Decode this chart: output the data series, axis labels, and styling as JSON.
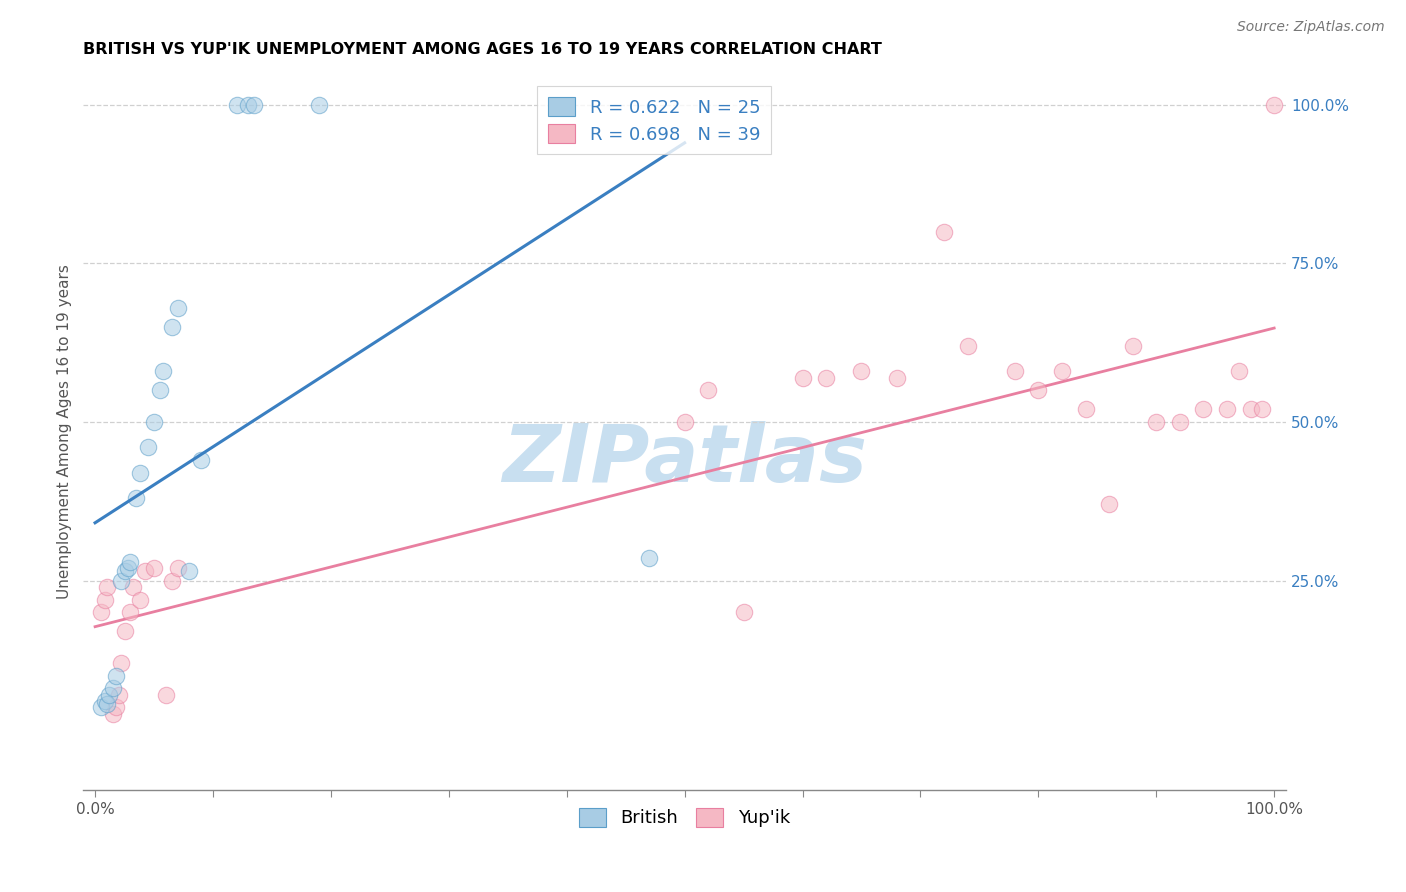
{
  "title": "BRITISH VS YUP'IK UNEMPLOYMENT AMONG AGES 16 TO 19 YEARS CORRELATION CHART",
  "source": "Source: ZipAtlas.com",
  "ylabel": "Unemployment Among Ages 16 to 19 years",
  "xlim": [
    -0.01,
    1.01
  ],
  "ylim": [
    -0.08,
    1.05
  ],
  "british_R": 0.622,
  "british_N": 25,
  "yupik_R": 0.698,
  "yupik_N": 39,
  "british_color": "#a8cce4",
  "british_edge_color": "#5b9ec9",
  "yupik_color": "#f5b8c4",
  "yupik_edge_color": "#e87fa0",
  "british_line_color": "#3a7fc1",
  "yupik_line_color": "#e87fa0",
  "legend_text_color": "#3a7fc1",
  "right_tick_color": "#3a7fc1",
  "watermark_color": "#c8dff0",
  "british_x": [
    0.005,
    0.008,
    0.01,
    0.012,
    0.015,
    0.018,
    0.022,
    0.025,
    0.028,
    0.03,
    0.035,
    0.038,
    0.045,
    0.05,
    0.055,
    0.058,
    0.065,
    0.07,
    0.08,
    0.09,
    0.12,
    0.13,
    0.135,
    0.19,
    0.47
  ],
  "british_y": [
    0.05,
    0.06,
    0.055,
    0.07,
    0.08,
    0.1,
    0.25,
    0.265,
    0.27,
    0.28,
    0.38,
    0.42,
    0.46,
    0.5,
    0.55,
    0.58,
    0.65,
    0.68,
    0.265,
    0.44,
    1.0,
    1.0,
    1.0,
    1.0,
    0.285
  ],
  "yupik_x": [
    0.005,
    0.008,
    0.01,
    0.015,
    0.018,
    0.02,
    0.022,
    0.025,
    0.03,
    0.032,
    0.038,
    0.042,
    0.05,
    0.06,
    0.065,
    0.07,
    0.5,
    0.52,
    0.55,
    0.6,
    0.62,
    0.65,
    0.68,
    0.72,
    0.74,
    0.78,
    0.8,
    0.82,
    0.84,
    0.86,
    0.88,
    0.9,
    0.92,
    0.94,
    0.96,
    0.97,
    0.98,
    0.99,
    1.0
  ],
  "yupik_y": [
    0.2,
    0.22,
    0.24,
    0.04,
    0.05,
    0.07,
    0.12,
    0.17,
    0.2,
    0.24,
    0.22,
    0.265,
    0.27,
    0.07,
    0.25,
    0.27,
    0.5,
    0.55,
    0.2,
    0.57,
    0.57,
    0.58,
    0.57,
    0.8,
    0.62,
    0.58,
    0.55,
    0.58,
    0.52,
    0.37,
    0.62,
    0.5,
    0.5,
    0.52,
    0.52,
    0.58,
    0.52,
    0.52,
    1.0
  ],
  "marker_size": 140,
  "alpha": 0.55,
  "grid_color": "#d0d0d0",
  "grid_yticks": [
    0.25,
    0.5,
    0.75,
    1.0
  ],
  "ytick_labels": [
    "25.0%",
    "50.0%",
    "75.0%",
    "100.0%"
  ]
}
